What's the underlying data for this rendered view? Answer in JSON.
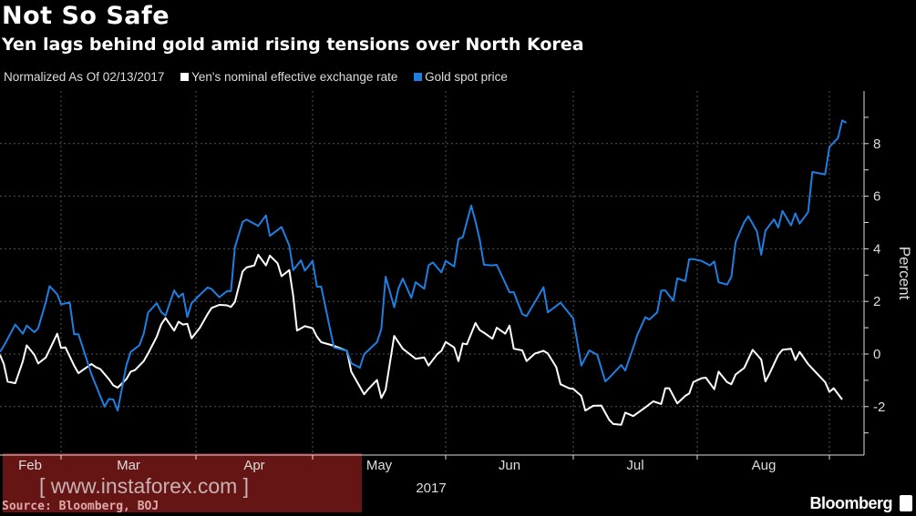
{
  "header": {
    "title": "Not So Safe",
    "subtitle": "Yen lags behind gold amid rising tensions over North Korea"
  },
  "legend": {
    "note": "Normalized As Of 02/13/2017",
    "items": [
      {
        "label": "Yen's nominal effective exchange rate",
        "color": "#ffffff"
      },
      {
        "label": "Gold spot price",
        "color": "#1f7fe0"
      }
    ]
  },
  "footer": {
    "source": "Source: Bloomberg, BOJ",
    "brand": "Bloomberg",
    "watermark": "[ www.instaforex.com ]"
  },
  "chart_data": {
    "type": "line",
    "ylabel": "Percent",
    "xlabel": "2017",
    "x_tick_labels": [
      "Feb",
      "Mar",
      "Apr",
      "May",
      "Jun",
      "Jul",
      "Aug"
    ],
    "y_ticks": [
      8,
      6,
      4,
      2,
      0,
      -2
    ],
    "ylim": [
      -3.8,
      10
    ],
    "grid": true,
    "y_axis_side": "right",
    "series": [
      {
        "name": "Yen's nominal effective exchange rate",
        "color": "#ffffff",
        "points": [
          [
            "2017-02-13",
            -0.03
          ],
          [
            "2017-02-14",
            -0.38
          ],
          [
            "2017-02-15",
            -1.05
          ],
          [
            "2017-02-17",
            -1.11
          ],
          [
            "2017-02-19",
            -0.27
          ],
          [
            "2017-02-20",
            0.33
          ],
          [
            "2017-02-22",
            -0.03
          ],
          [
            "2017-02-23",
            -0.36
          ],
          [
            "2017-02-25",
            -0.13
          ],
          [
            "2017-02-28",
            0.77
          ],
          [
            "2017-03-01",
            0.23
          ],
          [
            "2017-03-02",
            0.25
          ],
          [
            "2017-03-04",
            -0.44
          ],
          [
            "2017-03-05",
            -0.73
          ],
          [
            "2017-03-06",
            -0.61
          ],
          [
            "2017-03-08",
            -0.38
          ],
          [
            "2017-03-09",
            -0.5
          ],
          [
            "2017-03-10",
            -0.57
          ],
          [
            "2017-03-12",
            -0.96
          ],
          [
            "2017-03-13",
            -1.19
          ],
          [
            "2017-03-14",
            -1.28
          ],
          [
            "2017-03-16",
            -0.96
          ],
          [
            "2017-03-17",
            -0.67
          ],
          [
            "2017-03-18",
            -0.61
          ],
          [
            "2017-03-20",
            -0.27
          ],
          [
            "2017-03-21",
            0.02
          ],
          [
            "2017-03-23",
            0.66
          ],
          [
            "2017-03-24",
            1.12
          ],
          [
            "2017-03-25",
            1.37
          ],
          [
            "2017-03-27",
            0.89
          ],
          [
            "2017-03-28",
            1.23
          ],
          [
            "2017-03-29",
            1.12
          ],
          [
            "2017-03-30",
            1.15
          ],
          [
            "2017-03-31",
            0.6
          ],
          [
            "2017-04-02",
            1.0
          ],
          [
            "2017-04-04",
            1.52
          ],
          [
            "2017-04-05",
            1.75
          ],
          [
            "2017-04-07",
            1.87
          ],
          [
            "2017-04-09",
            1.85
          ],
          [
            "2017-04-10",
            1.79
          ],
          [
            "2017-04-11",
            1.98
          ],
          [
            "2017-04-13",
            3.14
          ],
          [
            "2017-04-14",
            3.29
          ],
          [
            "2017-04-16",
            3.37
          ],
          [
            "2017-04-17",
            3.77
          ],
          [
            "2017-04-19",
            3.37
          ],
          [
            "2017-04-20",
            3.74
          ],
          [
            "2017-04-22",
            3.45
          ],
          [
            "2017-04-23",
            2.96
          ],
          [
            "2017-04-25",
            3.19
          ],
          [
            "2017-04-26",
            2.21
          ],
          [
            "2017-04-27",
            0.89
          ],
          [
            "2017-04-29",
            1.06
          ],
          [
            "2017-05-01",
            0.98
          ],
          [
            "2017-05-02",
            0.66
          ],
          [
            "2017-05-03",
            0.45
          ],
          [
            "2017-05-06",
            0.31
          ],
          [
            "2017-05-09",
            0.12
          ],
          [
            "2017-05-10",
            -0.67
          ],
          [
            "2017-05-13",
            -1.53
          ],
          [
            "2017-05-14",
            -1.33
          ],
          [
            "2017-05-16",
            -0.99
          ],
          [
            "2017-05-17",
            -1.67
          ],
          [
            "2017-05-18",
            -1.36
          ],
          [
            "2017-05-20",
            0.69
          ],
          [
            "2017-05-22",
            0.2
          ],
          [
            "2017-05-25",
            -0.18
          ],
          [
            "2017-05-27",
            -0.13
          ],
          [
            "2017-05-28",
            -0.44
          ],
          [
            "2017-05-30",
            -0.01
          ],
          [
            "2017-05-31",
            0.12
          ],
          [
            "2017-06-01",
            0.46
          ],
          [
            "2017-06-03",
            0.25
          ],
          [
            "2017-06-04",
            -0.27
          ],
          [
            "2017-06-05",
            0.4
          ],
          [
            "2017-06-06",
            0.37
          ],
          [
            "2017-06-08",
            1.18
          ],
          [
            "2017-06-09",
            0.91
          ],
          [
            "2017-06-10",
            0.81
          ],
          [
            "2017-06-12",
            0.58
          ],
          [
            "2017-06-13",
            1.0
          ],
          [
            "2017-06-15",
            0.77
          ],
          [
            "2017-06-16",
            1.08
          ],
          [
            "2017-06-17",
            0.2
          ],
          [
            "2017-06-19",
            0.14
          ],
          [
            "2017-06-20",
            -0.27
          ],
          [
            "2017-06-22",
            0.02
          ],
          [
            "2017-06-24",
            0.12
          ],
          [
            "2017-06-25",
            0.02
          ],
          [
            "2017-06-27",
            -0.5
          ],
          [
            "2017-06-28",
            -1.15
          ],
          [
            "2017-06-30",
            -1.3
          ],
          [
            "2017-07-01",
            -1.33
          ],
          [
            "2017-07-03",
            -1.59
          ],
          [
            "2017-07-04",
            -2.15
          ],
          [
            "2017-07-06",
            -1.97
          ],
          [
            "2017-07-08",
            -1.96
          ],
          [
            "2017-07-10",
            -2.51
          ],
          [
            "2017-07-11",
            -2.66
          ],
          [
            "2017-07-13",
            -2.69
          ],
          [
            "2017-07-14",
            -2.23
          ],
          [
            "2017-07-16",
            -2.36
          ],
          [
            "2017-07-19",
            -2.03
          ],
          [
            "2017-07-21",
            -1.8
          ],
          [
            "2017-07-23",
            -1.9
          ],
          [
            "2017-07-24",
            -1.3
          ],
          [
            "2017-07-25",
            -1.3
          ],
          [
            "2017-07-27",
            -1.88
          ],
          [
            "2017-07-29",
            -1.59
          ],
          [
            "2017-07-30",
            -1.5
          ],
          [
            "2017-07-31",
            -1.07
          ],
          [
            "2017-08-02",
            -0.92
          ],
          [
            "2017-08-03",
            -0.9
          ],
          [
            "2017-08-05",
            -1.34
          ],
          [
            "2017-08-06",
            -0.67
          ],
          [
            "2017-08-08",
            -1.07
          ],
          [
            "2017-08-09",
            -1.15
          ],
          [
            "2017-08-10",
            -0.78
          ],
          [
            "2017-08-12",
            -0.53
          ],
          [
            "2017-08-14",
            0.16
          ],
          [
            "2017-08-16",
            -0.21
          ],
          [
            "2017-08-17",
            -1.04
          ],
          [
            "2017-08-18",
            -0.73
          ],
          [
            "2017-08-20",
            -0.03
          ],
          [
            "2017-08-21",
            0.16
          ],
          [
            "2017-08-23",
            0.2
          ],
          [
            "2017-08-24",
            -0.23
          ],
          [
            "2017-08-25",
            0.08
          ],
          [
            "2017-08-27",
            -0.38
          ],
          [
            "2017-08-29",
            -0.73
          ],
          [
            "2017-08-31",
            -1.07
          ],
          [
            "2017-09-01",
            -1.44
          ],
          [
            "2017-09-02",
            -1.3
          ],
          [
            "2017-09-04",
            -1.73
          ]
        ]
      },
      {
        "name": "Gold spot price",
        "color": "#1f7fe0",
        "points": [
          [
            "2017-02-13",
            0.08
          ],
          [
            "2017-02-14",
            0.31
          ],
          [
            "2017-02-17",
            1.12
          ],
          [
            "2017-02-19",
            0.77
          ],
          [
            "2017-02-20",
            1.08
          ],
          [
            "2017-02-22",
            0.83
          ],
          [
            "2017-02-23",
            0.98
          ],
          [
            "2017-02-25",
            1.98
          ],
          [
            "2017-02-26",
            2.58
          ],
          [
            "2017-02-28",
            2.27
          ],
          [
            "2017-03-01",
            1.89
          ],
          [
            "2017-03-03",
            1.96
          ],
          [
            "2017-03-04",
            0.75
          ],
          [
            "2017-03-05",
            0.75
          ],
          [
            "2017-03-08",
            -0.78
          ],
          [
            "2017-03-11",
            -2.0
          ],
          [
            "2017-03-12",
            -1.71
          ],
          [
            "2017-03-13",
            -1.73
          ],
          [
            "2017-03-14",
            -2.15
          ],
          [
            "2017-03-16",
            -0.44
          ],
          [
            "2017-03-17",
            0.08
          ],
          [
            "2017-03-19",
            0.33
          ],
          [
            "2017-03-20",
            0.77
          ],
          [
            "2017-03-21",
            1.58
          ],
          [
            "2017-03-23",
            1.93
          ],
          [
            "2017-03-24",
            1.6
          ],
          [
            "2017-03-25",
            1.46
          ],
          [
            "2017-03-27",
            2.42
          ],
          [
            "2017-03-28",
            2.16
          ],
          [
            "2017-03-29",
            2.3
          ],
          [
            "2017-03-30",
            1.41
          ],
          [
            "2017-03-31",
            1.93
          ],
          [
            "2017-04-02",
            2.25
          ],
          [
            "2017-04-04",
            2.53
          ],
          [
            "2017-04-05",
            2.47
          ],
          [
            "2017-04-07",
            2.16
          ],
          [
            "2017-04-09",
            2.39
          ],
          [
            "2017-04-10",
            2.39
          ],
          [
            "2017-04-11",
            4.06
          ],
          [
            "2017-04-13",
            5.02
          ],
          [
            "2017-04-14",
            5.11
          ],
          [
            "2017-04-16",
            4.95
          ],
          [
            "2017-04-17",
            4.87
          ],
          [
            "2017-04-19",
            5.27
          ],
          [
            "2017-04-20",
            4.49
          ],
          [
            "2017-04-23",
            4.83
          ],
          [
            "2017-04-25",
            4.12
          ],
          [
            "2017-04-26",
            3.19
          ],
          [
            "2017-04-28",
            3.56
          ],
          [
            "2017-04-29",
            3.17
          ],
          [
            "2017-05-01",
            3.54
          ],
          [
            "2017-05-02",
            2.56
          ],
          [
            "2017-05-03",
            2.56
          ],
          [
            "2017-05-05",
            1.0
          ],
          [
            "2017-05-06",
            0.25
          ],
          [
            "2017-05-09",
            0.12
          ],
          [
            "2017-05-10",
            -0.35
          ],
          [
            "2017-05-12",
            -0.52
          ],
          [
            "2017-05-13",
            -0.01
          ],
          [
            "2017-05-16",
            0.45
          ],
          [
            "2017-05-17",
            0.95
          ],
          [
            "2017-05-18",
            2.94
          ],
          [
            "2017-05-20",
            1.78
          ],
          [
            "2017-05-21",
            2.5
          ],
          [
            "2017-05-22",
            2.87
          ],
          [
            "2017-05-24",
            2.13
          ],
          [
            "2017-05-25",
            2.73
          ],
          [
            "2017-05-27",
            2.48
          ],
          [
            "2017-05-28",
            3.37
          ],
          [
            "2017-05-29",
            3.48
          ],
          [
            "2017-05-31",
            3.1
          ],
          [
            "2017-06-01",
            3.54
          ],
          [
            "2017-06-03",
            3.33
          ],
          [
            "2017-06-04",
            4.37
          ],
          [
            "2017-06-05",
            4.44
          ],
          [
            "2017-06-07",
            5.64
          ],
          [
            "2017-06-08",
            5.04
          ],
          [
            "2017-06-09",
            4.35
          ],
          [
            "2017-06-10",
            3.39
          ],
          [
            "2017-06-12",
            3.37
          ],
          [
            "2017-06-13",
            3.39
          ],
          [
            "2017-06-16",
            2.35
          ],
          [
            "2017-06-17",
            2.35
          ],
          [
            "2017-06-19",
            1.52
          ],
          [
            "2017-06-20",
            1.44
          ],
          [
            "2017-06-22",
            1.98
          ],
          [
            "2017-06-24",
            2.54
          ],
          [
            "2017-06-25",
            1.58
          ],
          [
            "2017-06-28",
            1.95
          ],
          [
            "2017-07-01",
            1.35
          ],
          [
            "2017-07-03",
            -0.44
          ],
          [
            "2017-07-05",
            0.14
          ],
          [
            "2017-07-07",
            -0.03
          ],
          [
            "2017-07-09",
            -1.04
          ],
          [
            "2017-07-10",
            -0.9
          ],
          [
            "2017-07-13",
            -0.42
          ],
          [
            "2017-07-14",
            -0.63
          ],
          [
            "2017-07-16",
            0.25
          ],
          [
            "2017-07-17",
            0.72
          ],
          [
            "2017-07-19",
            1.4
          ],
          [
            "2017-07-20",
            1.31
          ],
          [
            "2017-07-22",
            1.58
          ],
          [
            "2017-07-23",
            2.41
          ],
          [
            "2017-07-24",
            2.42
          ],
          [
            "2017-07-26",
            2.02
          ],
          [
            "2017-07-27",
            2.88
          ],
          [
            "2017-07-29",
            2.77
          ],
          [
            "2017-07-30",
            3.61
          ],
          [
            "2017-07-31",
            3.61
          ],
          [
            "2017-08-02",
            3.54
          ],
          [
            "2017-08-04",
            3.37
          ],
          [
            "2017-08-05",
            3.52
          ],
          [
            "2017-08-06",
            2.73
          ],
          [
            "2017-08-08",
            2.64
          ],
          [
            "2017-08-09",
            2.93
          ],
          [
            "2017-08-10",
            4.26
          ],
          [
            "2017-08-12",
            5.01
          ],
          [
            "2017-08-13",
            5.24
          ],
          [
            "2017-08-15",
            4.66
          ],
          [
            "2017-08-16",
            3.77
          ],
          [
            "2017-08-17",
            4.69
          ],
          [
            "2017-08-19",
            5.12
          ],
          [
            "2017-08-20",
            4.81
          ],
          [
            "2017-08-21",
            5.44
          ],
          [
            "2017-08-23",
            4.89
          ],
          [
            "2017-08-24",
            5.35
          ],
          [
            "2017-08-25",
            4.96
          ],
          [
            "2017-08-27",
            5.39
          ],
          [
            "2017-08-28",
            6.92
          ],
          [
            "2017-08-31",
            6.83
          ],
          [
            "2017-09-01",
            7.87
          ],
          [
            "2017-09-03",
            8.21
          ],
          [
            "2017-09-04",
            8.88
          ],
          [
            "2017-09-05",
            8.79
          ]
        ]
      }
    ]
  }
}
